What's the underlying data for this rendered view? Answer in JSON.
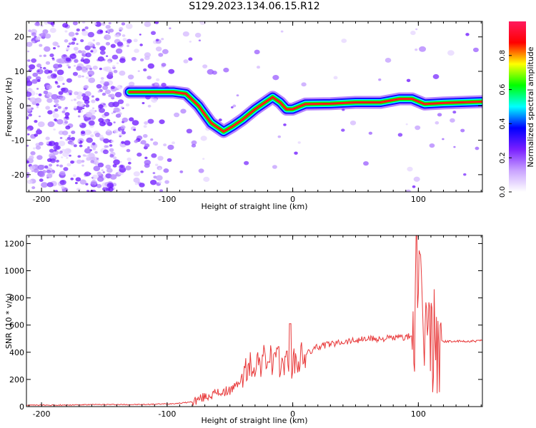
{
  "title": "S129.2023.134.06.15.R12",
  "colors": {
    "snr_line": "#e8393a",
    "spectrogram_low": "#b794f6",
    "spectrogram_mid": "#2f00ff",
    "spectrogram_high": "#e8132b"
  },
  "chart_data": [
    {
      "type": "heatmap",
      "xlabel": "Height of straight line (km)",
      "ylabel": "Frequency (Hz)",
      "xlim": [
        -212,
        151
      ],
      "ylim": [
        -25,
        24.5
      ],
      "xticks": [
        -200,
        -100,
        0,
        100
      ],
      "yticks": [
        -20,
        -10,
        0,
        10,
        20
      ],
      "colorbar": {
        "label": "Normalized spectral amplitude",
        "range": [
          0,
          1
        ],
        "ticks": [
          "0.0",
          "0.2",
          "0.4",
          "0.6",
          "0.8"
        ],
        "colormap": [
          "#ffffff",
          "#c9a3ff",
          "#7a1fff",
          "#0000ff",
          "#00ffff",
          "#00ff00",
          "#ffff00",
          "#ff0000",
          "#ff1a5e"
        ]
      },
      "ridge": {
        "x": [
          -130,
          -110,
          -95,
          -85,
          -75,
          -65,
          -55,
          -48,
          -40,
          -30,
          -22,
          -16,
          -10,
          -5,
          0,
          10,
          30,
          50,
          70,
          85,
          95,
          105,
          120,
          151
        ],
        "y": [
          4,
          4,
          4,
          3.5,
          0,
          -5,
          -7.5,
          -6,
          -4,
          -1,
          1,
          2.5,
          1,
          -1,
          -1,
          0.5,
          0.6,
          1,
          1,
          2,
          2,
          0.5,
          0.8,
          1.2
        ]
      }
    },
    {
      "type": "line",
      "xlabel": "Height of straight line (km)",
      "ylabel": "SNR (10 * v/v)",
      "xlim": [
        -212,
        151
      ],
      "ylim": [
        0,
        1260
      ],
      "xticks": [
        -200,
        -100,
        0,
        100
      ],
      "yticks": [
        0,
        200,
        400,
        600,
        800,
        1000,
        1200
      ],
      "series": [
        {
          "x": [
            -212,
            -180,
            -150,
            -120,
            -100,
            -90,
            -80,
            -70,
            -60,
            -50,
            -45,
            -40,
            -35,
            -30,
            -25,
            -20,
            -15,
            -10,
            -5,
            0,
            10,
            20,
            30,
            40,
            50,
            60,
            70,
            80,
            90,
            95,
            98,
            100,
            103,
            106,
            109,
            112,
            115,
            118,
            120,
            130,
            140,
            151
          ],
          "y": [
            10,
            12,
            15,
            15,
            20,
            25,
            35,
            70,
            100,
            120,
            150,
            220,
            280,
            320,
            330,
            350,
            330,
            320,
            330,
            300,
            380,
            440,
            460,
            480,
            490,
            500,
            500,
            505,
            510,
            520,
            600,
            800,
            650,
            550,
            520,
            480,
            470,
            480,
            480,
            480,
            480,
            485
          ]
        }
      ]
    }
  ]
}
